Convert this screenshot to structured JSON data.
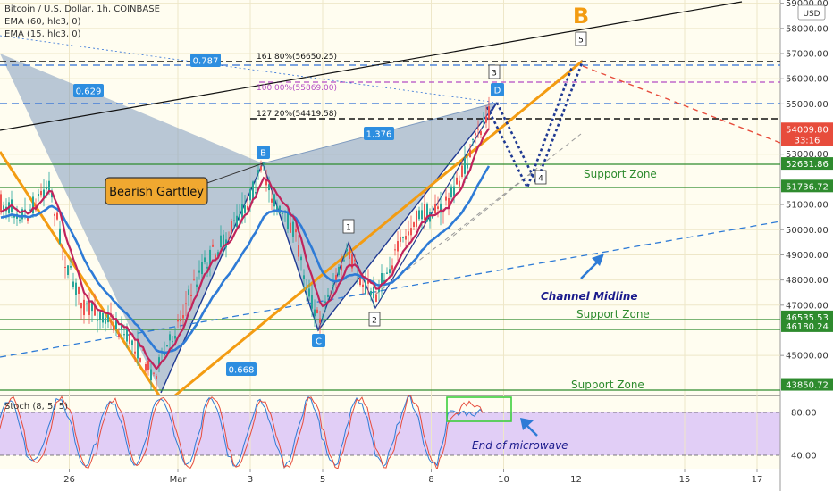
{
  "chart_data": {
    "type": "line",
    "header": {
      "symbol": "Bitcoin / U.S. Dollar, 1h, COINBASE",
      "ema60": "EMA (60, hlc3, 0)",
      "ema15": "EMA (15, hlc3, 0)",
      "stoch": "Stoch (8, 5, 5)"
    },
    "currency_badge": "USD",
    "y_axis": {
      "range": [
        43200,
        59200
      ],
      "ticks": [
        {
          "v": 59000,
          "label": "59000.00"
        },
        {
          "v": 58000,
          "label": "58000.00"
        },
        {
          "v": 57000,
          "label": "57000.00"
        },
        {
          "v": 56000,
          "label": "56000.00"
        },
        {
          "v": 55000,
          "label": "55000.00"
        },
        {
          "v": 53000,
          "label": "53000.00"
        },
        {
          "v": 51000,
          "label": "51000.00"
        },
        {
          "v": 50000,
          "label": "50000.00"
        },
        {
          "v": 49000,
          "label": "49000.00"
        },
        {
          "v": 48000,
          "label": "48000.00"
        },
        {
          "v": 47000,
          "label": "47000.00"
        },
        {
          "v": 45000,
          "label": "45000.00"
        }
      ]
    },
    "x_axis": {
      "range": [
        24.5,
        18.2
      ],
      "ticks": [
        {
          "d": 26,
          "label": "26"
        },
        {
          "d": 1,
          "label": "Mar"
        },
        {
          "d": 3,
          "label": "3"
        },
        {
          "d": 5,
          "label": "5"
        },
        {
          "d": 8,
          "label": "8"
        },
        {
          "d": 10,
          "label": "10"
        },
        {
          "d": 12,
          "label": "12"
        },
        {
          "d": 15,
          "label": "15"
        },
        {
          "d": 17,
          "label": "17"
        }
      ]
    },
    "price_tags": [
      {
        "v": 54009.8,
        "label": "54009.80",
        "sub": "33:16",
        "color": "#e74c3c"
      },
      {
        "v": 52631.86,
        "label": "52631.86",
        "color": "#2e8b2e"
      },
      {
        "v": 51736.72,
        "label": "51736.72",
        "color": "#2e8b2e"
      },
      {
        "v": 46535.53,
        "label": "46535.53",
        "color": "#2e8b2e"
      },
      {
        "v": 46180.24,
        "label": "46180.24",
        "color": "#2e8b2e"
      },
      {
        "v": 43850.72,
        "label": "43850.72",
        "color": "#2e8b2e"
      }
    ],
    "fib_levels": [
      {
        "v": 56650.25,
        "label": "161.80%(56650.25)",
        "color": "#111111"
      },
      {
        "v": 55869,
        "label": "100.00%(55869.00)",
        "color": "#b44cc4"
      },
      {
        "v": 54419.58,
        "label": "127.20%(54419.58)",
        "color": "#111111"
      }
    ],
    "ratio_tags": [
      {
        "label": "0.787"
      },
      {
        "label": "0.629"
      },
      {
        "label": "1.376"
      },
      {
        "label": "0.668"
      }
    ],
    "pattern_points": [
      {
        "label": "B"
      },
      {
        "label": "C"
      },
      {
        "label": "D"
      }
    ],
    "wave_labels": [
      {
        "label": "1"
      },
      {
        "label": "2"
      },
      {
        "label": "3"
      },
      {
        "label": "4"
      },
      {
        "label": "5"
      }
    ],
    "big_label": "B",
    "annotations": {
      "pattern_name": "Bearish Garttley",
      "support_zones": [
        "Support Zone",
        "Support Zone",
        "Support Zone"
      ],
      "channel_midline": "Channel Midline",
      "microwave": "End of microwave"
    },
    "stoch_axis": [
      {
        "v": 80,
        "label": "80.00"
      },
      {
        "v": 40,
        "label": "40.00"
      }
    ],
    "colors": {
      "background": "#fffdf0",
      "pattern_fill": "#7f9bbf",
      "ema60": "#2e7bd6",
      "ema15": "#c0245c",
      "orange": "#f39c12",
      "support": "#2e8b2e",
      "stoch_band": "#dcc6f7"
    }
  }
}
